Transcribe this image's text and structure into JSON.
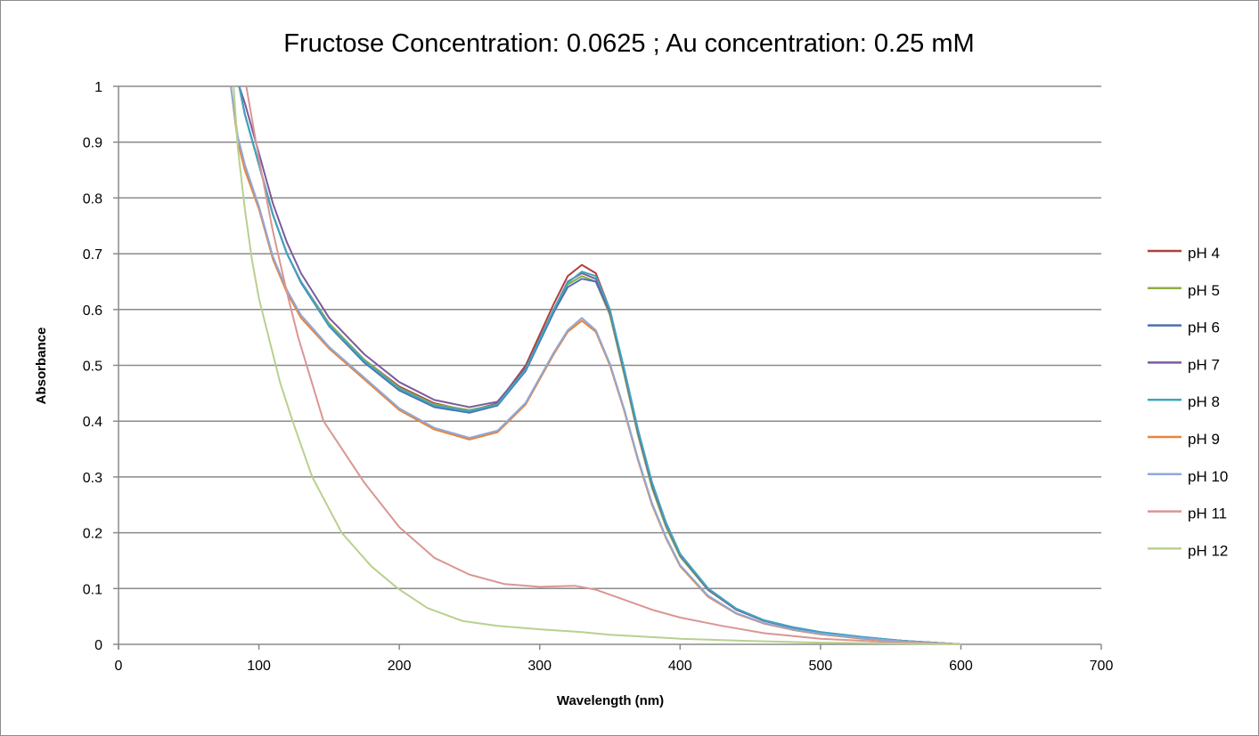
{
  "chart_data": {
    "type": "line",
    "title": "Fructose Concentration: 0.0625 ; Au concentration: 0.25 mM",
    "xlabel": "Wavelength (nm)",
    "ylabel": "Absorbance",
    "xlim": [
      0,
      700
    ],
    "ylim": [
      0,
      1
    ],
    "xticks": [
      "0",
      "100",
      "200",
      "300",
      "400",
      "500",
      "600",
      "700"
    ],
    "yticks": [
      "0",
      "0.1",
      "0.2",
      "0.3",
      "0.4",
      "0.5",
      "0.6",
      "0.7",
      "0.8",
      "0.9",
      "1"
    ],
    "grid": "horizontal",
    "legend_position": "right",
    "series": [
      {
        "name": "pH 4",
        "color": "#B0403D",
        "x": [
          86,
          90,
          100,
          110,
          120,
          130,
          150,
          175,
          200,
          225,
          250,
          270,
          290,
          310,
          320,
          330,
          340,
          350,
          360,
          370,
          380,
          390,
          400,
          420,
          440,
          460,
          480,
          500,
          530,
          560,
          600
        ],
        "y": [
          1,
          0.95,
          0.86,
          0.77,
          0.7,
          0.65,
          0.575,
          0.51,
          0.462,
          0.432,
          0.418,
          0.432,
          0.5,
          0.61,
          0.66,
          0.68,
          0.665,
          0.6,
          0.49,
          0.38,
          0.285,
          0.215,
          0.16,
          0.098,
          0.062,
          0.042,
          0.03,
          0.021,
          0.012,
          0.006,
          0
        ]
      },
      {
        "name": "pH 5",
        "color": "#8DAE45",
        "x": [
          86,
          90,
          100,
          110,
          120,
          130,
          150,
          175,
          200,
          225,
          250,
          270,
          290,
          310,
          320,
          330,
          340,
          350,
          360,
          370,
          380,
          390,
          400,
          420,
          440,
          460,
          480,
          500,
          530,
          560,
          600
        ],
        "y": [
          1,
          0.95,
          0.86,
          0.77,
          0.7,
          0.65,
          0.575,
          0.51,
          0.46,
          0.43,
          0.42,
          0.43,
          0.495,
          0.6,
          0.645,
          0.66,
          0.65,
          0.59,
          0.485,
          0.375,
          0.28,
          0.21,
          0.157,
          0.097,
          0.062,
          0.042,
          0.03,
          0.021,
          0.012,
          0.006,
          0
        ]
      },
      {
        "name": "pH 6",
        "color": "#4A72B0",
        "x": [
          86,
          90,
          100,
          110,
          120,
          130,
          150,
          175,
          200,
          225,
          250,
          270,
          290,
          310,
          320,
          330,
          340,
          350,
          360,
          370,
          380,
          390,
          400,
          420,
          440,
          460,
          480,
          500,
          530,
          560,
          600
        ],
        "y": [
          1,
          0.95,
          0.86,
          0.77,
          0.7,
          0.648,
          0.57,
          0.505,
          0.455,
          0.425,
          0.415,
          0.428,
          0.49,
          0.595,
          0.64,
          0.655,
          0.65,
          0.595,
          0.495,
          0.385,
          0.29,
          0.218,
          0.162,
          0.1,
          0.064,
          0.043,
          0.031,
          0.022,
          0.013,
          0.006,
          0
        ]
      },
      {
        "name": "pH 7",
        "color": "#7B5B9E",
        "x": [
          86,
          90,
          100,
          110,
          120,
          130,
          150,
          175,
          200,
          225,
          250,
          270,
          290,
          310,
          320,
          330,
          340,
          350,
          360,
          370,
          380,
          390,
          400,
          420,
          440,
          460,
          480,
          500,
          530,
          560,
          600
        ],
        "y": [
          1,
          0.97,
          0.88,
          0.79,
          0.72,
          0.665,
          0.585,
          0.52,
          0.47,
          0.438,
          0.425,
          0.435,
          0.495,
          0.6,
          0.65,
          0.665,
          0.655,
          0.595,
          0.49,
          0.38,
          0.285,
          0.215,
          0.16,
          0.098,
          0.062,
          0.042,
          0.03,
          0.021,
          0.012,
          0.006,
          0
        ]
      },
      {
        "name": "pH 8",
        "color": "#3FA6C0",
        "x": [
          86,
          90,
          100,
          110,
          120,
          130,
          150,
          175,
          200,
          225,
          250,
          270,
          290,
          310,
          320,
          330,
          340,
          350,
          360,
          370,
          380,
          390,
          400,
          420,
          440,
          460,
          480,
          500,
          530,
          560,
          600
        ],
        "y": [
          1,
          0.95,
          0.86,
          0.77,
          0.7,
          0.65,
          0.572,
          0.508,
          0.458,
          0.428,
          0.418,
          0.43,
          0.493,
          0.6,
          0.648,
          0.668,
          0.66,
          0.6,
          0.495,
          0.385,
          0.29,
          0.218,
          0.162,
          0.1,
          0.064,
          0.043,
          0.031,
          0.022,
          0.013,
          0.006,
          0
        ]
      },
      {
        "name": "pH 9",
        "color": "#E8843A",
        "x": [
          80,
          85,
          90,
          100,
          110,
          120,
          130,
          150,
          175,
          200,
          225,
          250,
          270,
          290,
          310,
          320,
          330,
          340,
          350,
          360,
          370,
          380,
          390,
          400,
          420,
          440,
          460,
          480,
          500,
          530,
          560,
          600
        ],
        "y": [
          1,
          0.9,
          0.85,
          0.78,
          0.69,
          0.63,
          0.585,
          0.53,
          0.475,
          0.42,
          0.385,
          0.367,
          0.38,
          0.43,
          0.52,
          0.56,
          0.58,
          0.56,
          0.5,
          0.42,
          0.33,
          0.25,
          0.19,
          0.14,
          0.085,
          0.055,
          0.037,
          0.026,
          0.018,
          0.01,
          0.005,
          0
        ]
      },
      {
        "name": "pH 10",
        "color": "#8FA8D8",
        "x": [
          80,
          85,
          90,
          100,
          110,
          120,
          130,
          150,
          175,
          200,
          225,
          250,
          270,
          290,
          310,
          320,
          330,
          340,
          350,
          360,
          370,
          380,
          390,
          400,
          420,
          440,
          460,
          480,
          500,
          530,
          560,
          600
        ],
        "y": [
          1,
          0.91,
          0.86,
          0.785,
          0.695,
          0.635,
          0.59,
          0.533,
          0.478,
          0.423,
          0.388,
          0.37,
          0.383,
          0.433,
          0.523,
          0.563,
          0.585,
          0.563,
          0.503,
          0.423,
          0.333,
          0.253,
          0.192,
          0.142,
          0.087,
          0.056,
          0.038,
          0.027,
          0.019,
          0.011,
          0.005,
          0
        ]
      },
      {
        "name": "pH 11",
        "color": "#D99694",
        "x": [
          91,
          100,
          110,
          120,
          128,
          146,
          175,
          200,
          225,
          250,
          275,
          300,
          325,
          340,
          360,
          380,
          400,
          430,
          460,
          500,
          550,
          600
        ],
        "y": [
          1,
          0.87,
          0.74,
          0.63,
          0.55,
          0.4,
          0.29,
          0.21,
          0.155,
          0.125,
          0.108,
          0.103,
          0.105,
          0.098,
          0.08,
          0.062,
          0.048,
          0.033,
          0.02,
          0.01,
          0.004,
          0
        ]
      },
      {
        "name": "pH 12",
        "color": "#B9D08E",
        "x": [
          82,
          85,
          90,
          95,
          100,
          107,
          115,
          124,
          138,
          159,
          180,
          199,
          220,
          245,
          270,
          300,
          330,
          350,
          400,
          450,
          500,
          600
        ],
        "y": [
          1,
          0.89,
          0.78,
          0.69,
          0.62,
          0.55,
          0.47,
          0.4,
          0.3,
          0.2,
          0.14,
          0.1,
          0.065,
          0.042,
          0.033,
          0.027,
          0.022,
          0.017,
          0.01,
          0.006,
          0.003,
          0
        ]
      }
    ]
  }
}
